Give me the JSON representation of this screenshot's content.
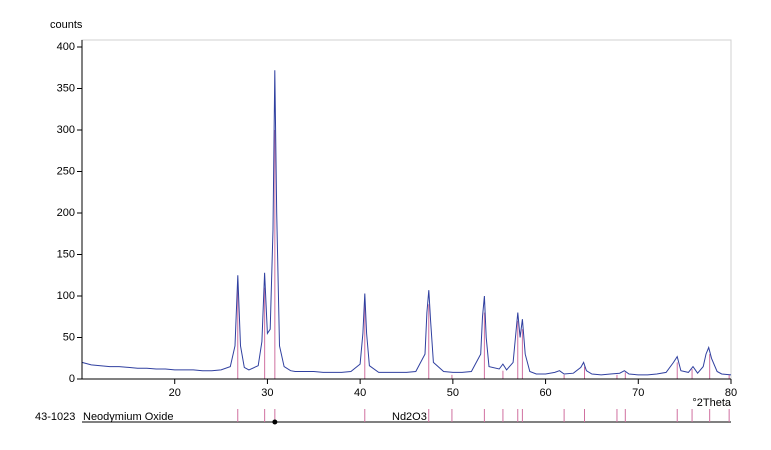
{
  "chart_data": {
    "type": "line",
    "y_label": "counts",
    "x_label": "°2Theta",
    "xlim": [
      10,
      80
    ],
    "xticks": [
      20,
      30,
      40,
      50,
      60,
      70,
      80
    ],
    "ylim": [
      0,
      400
    ],
    "yticks": [
      0,
      50,
      100,
      150,
      200,
      250,
      300,
      350,
      400
    ],
    "grid": false,
    "series": [
      {
        "color": "#3040a0",
        "x": [
          10,
          11,
          12,
          13,
          14,
          15,
          16,
          17,
          18,
          19,
          20,
          21,
          22,
          23,
          24,
          25,
          26,
          26.5,
          26.8,
          27.1,
          27.5,
          28,
          29,
          29.4,
          29.7,
          30.0,
          30.3,
          30.6,
          30.8,
          31.0,
          31.3,
          31.8,
          32.5,
          33,
          34,
          35,
          36,
          37,
          38,
          39,
          40,
          40.3,
          40.5,
          40.7,
          41,
          42,
          43,
          44,
          45,
          46,
          47,
          47.2,
          47.4,
          47.6,
          47.9,
          49,
          50,
          51,
          52,
          53,
          53.2,
          53.4,
          53.6,
          53.9,
          55,
          55.4,
          55.8,
          56.5,
          57.0,
          57.25,
          57.5,
          57.8,
          58.3,
          59,
          60,
          61,
          61.5,
          62,
          63,
          63.8,
          64.1,
          64.4,
          65,
          66,
          67,
          68,
          68.5,
          69,
          70,
          71,
          72,
          73,
          73.8,
          74.2,
          74.6,
          75.4,
          75.9,
          76.4,
          77,
          77.3,
          77.6,
          77.9,
          78.5,
          79,
          80
        ],
        "values": [
          20,
          17,
          16,
          15,
          15,
          14,
          13,
          13,
          12,
          12,
          11,
          11,
          11,
          10,
          10,
          11,
          15,
          40,
          125,
          40,
          14,
          11,
          16,
          45,
          128,
          55,
          60,
          180,
          372,
          200,
          40,
          15,
          10,
          9,
          9,
          9,
          8,
          8,
          8,
          9,
          18,
          55,
          103,
          55,
          16,
          8,
          8,
          8,
          8,
          9,
          30,
          80,
          107,
          70,
          20,
          9,
          8,
          8,
          9,
          30,
          75,
          100,
          50,
          15,
          12,
          18,
          11,
          20,
          80,
          50,
          72,
          30,
          9,
          6,
          6,
          8,
          10,
          6,
          7,
          14,
          20,
          10,
          6,
          5,
          6,
          7,
          10,
          6,
          5,
          5,
          6,
          8,
          20,
          27,
          10,
          8,
          15,
          7,
          15,
          30,
          38,
          25,
          9,
          6,
          5
        ]
      }
    ],
    "reference": {
      "code": "43-1023",
      "name": "Neodymium Oxide",
      "formula": "Nd2O3",
      "color": "#d070a0",
      "positions": [
        26.8,
        29.7,
        30.8,
        40.5,
        47.4,
        49.9,
        53.4,
        55.4,
        57.0,
        57.5,
        62.0,
        64.2,
        67.7,
        68.6,
        74.2,
        75.8,
        77.7,
        79.8
      ],
      "intensities": [
        110,
        110,
        300,
        90,
        90,
        5,
        80,
        10,
        70,
        60,
        5,
        15,
        5,
        8,
        20,
        12,
        30,
        5
      ]
    }
  }
}
